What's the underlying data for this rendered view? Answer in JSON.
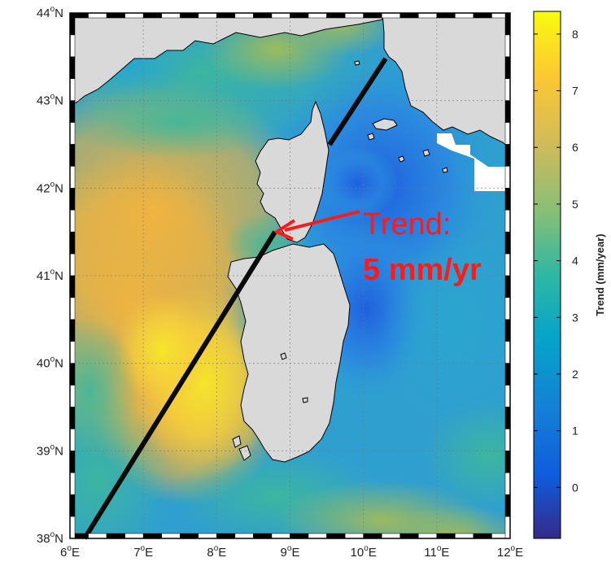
{
  "map": {
    "lat_labels": [
      {
        "deg": "44",
        "sup": "o",
        "hemi": "N"
      },
      {
        "deg": "43",
        "sup": "o",
        "hemi": "N"
      },
      {
        "deg": "42",
        "sup": "o",
        "hemi": "N"
      },
      {
        "deg": "41",
        "sup": "o",
        "hemi": "N"
      },
      {
        "deg": "40",
        "sup": "o",
        "hemi": "N"
      },
      {
        "deg": "39",
        "sup": "o",
        "hemi": "N"
      },
      {
        "deg": "38",
        "sup": "o",
        "hemi": "N"
      }
    ],
    "lon_labels": [
      {
        "deg": "6",
        "sup": "o",
        "hemi": "E"
      },
      {
        "deg": "7",
        "sup": "o",
        "hemi": "E"
      },
      {
        "deg": "8",
        "sup": "o",
        "hemi": "E"
      },
      {
        "deg": "9",
        "sup": "o",
        "hemi": "E"
      },
      {
        "deg": "10",
        "sup": "o",
        "hemi": "E"
      },
      {
        "deg": "11",
        "sup": "o",
        "hemi": "E"
      },
      {
        "deg": "12",
        "sup": "o",
        "hemi": "E"
      }
    ],
    "lat_range": [
      38,
      44
    ],
    "lon_range": [
      6,
      12
    ],
    "land_color": "#d9d9d9",
    "grid": true
  },
  "annotation": {
    "line1": "Trend:",
    "line2": "5 mm/yr",
    "color": "#ff1a1a"
  },
  "colorbar": {
    "title": "Trend (mm/year)",
    "ticks": [
      "8",
      "7",
      "6",
      "5",
      "4",
      "3",
      "2",
      "1",
      "0"
    ],
    "range": [
      -0.9,
      8.4
    ],
    "colormap": "parula"
  }
}
